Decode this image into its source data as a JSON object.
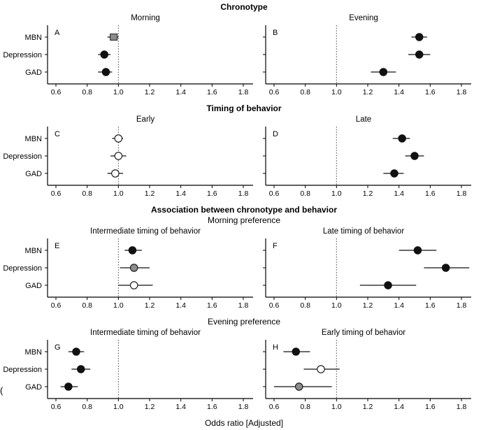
{
  "figure": {
    "xlabel": "Odds ratio [Adjusted]",
    "edge_fragment": "("
  },
  "chart_data": {
    "type": "forest",
    "xlabel": "Odds ratio [Adjusted]",
    "x_ticks": [
      0.6,
      0.8,
      1.0,
      1.2,
      1.4,
      1.6,
      1.8
    ],
    "x_range": [
      0.55,
      1.87
    ],
    "reference_line": 1.0,
    "grid": false,
    "categories": [
      "MBN",
      "Depression",
      "GAD"
    ],
    "marker_colors": {
      "black": "#111111",
      "gray": "#8c8c8c",
      "white": "#ffffff"
    },
    "sections": [
      {
        "header": "Chronotype",
        "header_bold": true,
        "subheader": "",
        "panels": [
          {
            "letter": "A",
            "title": "Morning",
            "points": [
              {
                "label": "MBN",
                "or": 0.97,
                "lo": 0.93,
                "hi": 1.0,
                "fill": "gray",
                "shape": "square"
              },
              {
                "label": "Depression",
                "or": 0.91,
                "lo": 0.87,
                "hi": 0.95,
                "fill": "black",
                "shape": "circle"
              },
              {
                "label": "GAD",
                "or": 0.92,
                "lo": 0.87,
                "hi": 0.96,
                "fill": "black",
                "shape": "circle"
              }
            ]
          },
          {
            "letter": "B",
            "title": "Evening",
            "points": [
              {
                "label": "MBN",
                "or": 1.53,
                "lo": 1.48,
                "hi": 1.58,
                "fill": "black",
                "shape": "circle"
              },
              {
                "label": "Depression",
                "or": 1.53,
                "lo": 1.46,
                "hi": 1.6,
                "fill": "black",
                "shape": "circle"
              },
              {
                "label": "GAD",
                "or": 1.3,
                "lo": 1.22,
                "hi": 1.38,
                "fill": "black",
                "shape": "circle"
              }
            ]
          }
        ]
      },
      {
        "header": "Timing of behavior",
        "header_bold": true,
        "subheader": "",
        "panels": [
          {
            "letter": "C",
            "title": "Early",
            "points": [
              {
                "label": "MBN",
                "or": 1.0,
                "lo": 0.96,
                "hi": 1.03,
                "fill": "white",
                "shape": "circle"
              },
              {
                "label": "Depression",
                "or": 1.0,
                "lo": 0.95,
                "hi": 1.05,
                "fill": "white",
                "shape": "circle"
              },
              {
                "label": "GAD",
                "or": 0.98,
                "lo": 0.93,
                "hi": 1.03,
                "fill": "white",
                "shape": "circle"
              }
            ]
          },
          {
            "letter": "D",
            "title": "Late",
            "points": [
              {
                "label": "MBN",
                "or": 1.42,
                "lo": 1.36,
                "hi": 1.47,
                "fill": "black",
                "shape": "circle"
              },
              {
                "label": "Depression",
                "or": 1.5,
                "lo": 1.44,
                "hi": 1.56,
                "fill": "black",
                "shape": "circle"
              },
              {
                "label": "GAD",
                "or": 1.37,
                "lo": 1.3,
                "hi": 1.43,
                "fill": "black",
                "shape": "circle"
              }
            ]
          }
        ]
      },
      {
        "header": "Association between chronotype and behavior",
        "header_bold": true,
        "subheader": "Morning preference",
        "panels": [
          {
            "letter": "E",
            "title": "Intermediate timing of behavior",
            "points": [
              {
                "label": "MBN",
                "or": 1.09,
                "lo": 1.04,
                "hi": 1.15,
                "fill": "black",
                "shape": "circle"
              },
              {
                "label": "Depression",
                "or": 1.1,
                "lo": 1.01,
                "hi": 1.2,
                "fill": "gray",
                "shape": "circle"
              },
              {
                "label": "GAD",
                "or": 1.1,
                "lo": 1.0,
                "hi": 1.22,
                "fill": "white",
                "shape": "circle"
              }
            ]
          },
          {
            "letter": "F",
            "title": "Late timing of behavior",
            "points": [
              {
                "label": "MBN",
                "or": 1.52,
                "lo": 1.4,
                "hi": 1.64,
                "fill": "black",
                "shape": "circle"
              },
              {
                "label": "Depression",
                "or": 1.7,
                "lo": 1.56,
                "hi": 1.85,
                "fill": "black",
                "shape": "circle"
              },
              {
                "label": "GAD",
                "or": 1.33,
                "lo": 1.15,
                "hi": 1.51,
                "fill": "black",
                "shape": "circle"
              }
            ]
          }
        ]
      },
      {
        "header": "Evening preference",
        "header_bold": false,
        "subheader": "",
        "panels": [
          {
            "letter": "G",
            "title": "Intermediate timing of behavior",
            "points": [
              {
                "label": "MBN",
                "or": 0.73,
                "lo": 0.68,
                "hi": 0.78,
                "fill": "black",
                "shape": "circle"
              },
              {
                "label": "Depression",
                "or": 0.76,
                "lo": 0.7,
                "hi": 0.82,
                "fill": "black",
                "shape": "circle"
              },
              {
                "label": "GAD",
                "or": 0.68,
                "lo": 0.63,
                "hi": 0.74,
                "fill": "black",
                "shape": "circle"
              }
            ]
          },
          {
            "letter": "H",
            "title": "Early timing of behavior",
            "points": [
              {
                "label": "MBN",
                "or": 0.74,
                "lo": 0.66,
                "hi": 0.83,
                "fill": "black",
                "shape": "circle"
              },
              {
                "label": "Depression",
                "or": 0.9,
                "lo": 0.79,
                "hi": 1.02,
                "fill": "white",
                "shape": "circle"
              },
              {
                "label": "GAD",
                "or": 0.76,
                "lo": 0.6,
                "hi": 0.97,
                "fill": "gray",
                "shape": "circle"
              }
            ]
          }
        ]
      }
    ]
  }
}
